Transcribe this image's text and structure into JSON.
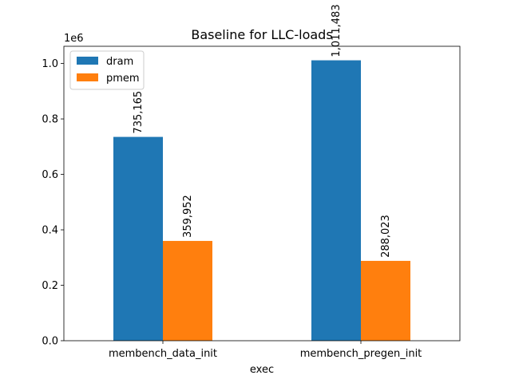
{
  "chart_data": {
    "type": "bar",
    "title": "Baseline for LLC-loads",
    "xlabel": "exec",
    "ylabel": "",
    "y_offset_label": "1e6",
    "y_scale": 1000000,
    "categories": [
      "membench_data_init",
      "membench_pregen_init"
    ],
    "series": [
      {
        "name": "dram",
        "color": "#1f77b4",
        "values": [
          735165,
          1011483
        ],
        "labels": [
          "735,165",
          "1,011,483"
        ]
      },
      {
        "name": "pmem",
        "color": "#ff7f0e",
        "values": [
          359952,
          288023
        ],
        "labels": [
          "359,952",
          "288,023"
        ]
      }
    ],
    "ylim": [
      0,
      1062057
    ],
    "yticks": [
      0,
      200000,
      400000,
      600000,
      800000,
      1000000
    ],
    "ytick_labels": [
      "0.0",
      "0.2",
      "0.4",
      "0.6",
      "0.8",
      "1.0"
    ],
    "grid": false,
    "legend_position": "top-left"
  }
}
